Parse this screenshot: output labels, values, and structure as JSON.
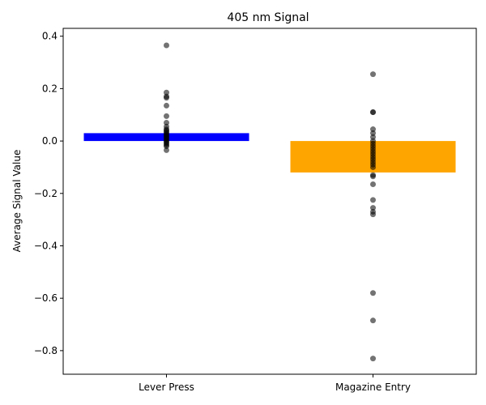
{
  "chart_data": {
    "type": "bar",
    "title": "405 nm Signal",
    "xlabel": "",
    "ylabel": "Average Signal Value",
    "categories": [
      "Lever Press",
      "Magazine Entry"
    ],
    "values": [
      0.03,
      -0.12
    ],
    "bar_colors": [
      "#0000ff",
      "#ffa500"
    ],
    "point_color": "#000000",
    "ylim": [
      -0.89,
      0.43
    ],
    "yticks": [
      0.4,
      0.2,
      0.0,
      -0.2,
      -0.4,
      -0.6,
      -0.8
    ],
    "ytick_labels": [
      "0.4",
      "0.2",
      "0.0",
      "−0.2",
      "−0.4",
      "−0.6",
      "−0.8"
    ],
    "grid": false,
    "points": [
      [
        0.365,
        0.185,
        0.17,
        0.165,
        0.135,
        0.095,
        0.07,
        0.055,
        0.045,
        0.04,
        0.035,
        0.03,
        0.025,
        0.02,
        0.015,
        0.01,
        0.005,
        0.0,
        -0.005,
        -0.01,
        -0.015,
        -0.02,
        -0.035
      ],
      [
        0.255,
        0.11,
        0.11,
        0.045,
        0.03,
        0.015,
        0.0,
        -0.01,
        -0.02,
        -0.03,
        -0.04,
        -0.05,
        -0.06,
        -0.07,
        -0.08,
        -0.09,
        -0.1,
        -0.13,
        -0.135,
        -0.165,
        -0.225,
        -0.255,
        -0.27,
        -0.28,
        -0.58,
        -0.685,
        -0.83
      ]
    ]
  }
}
